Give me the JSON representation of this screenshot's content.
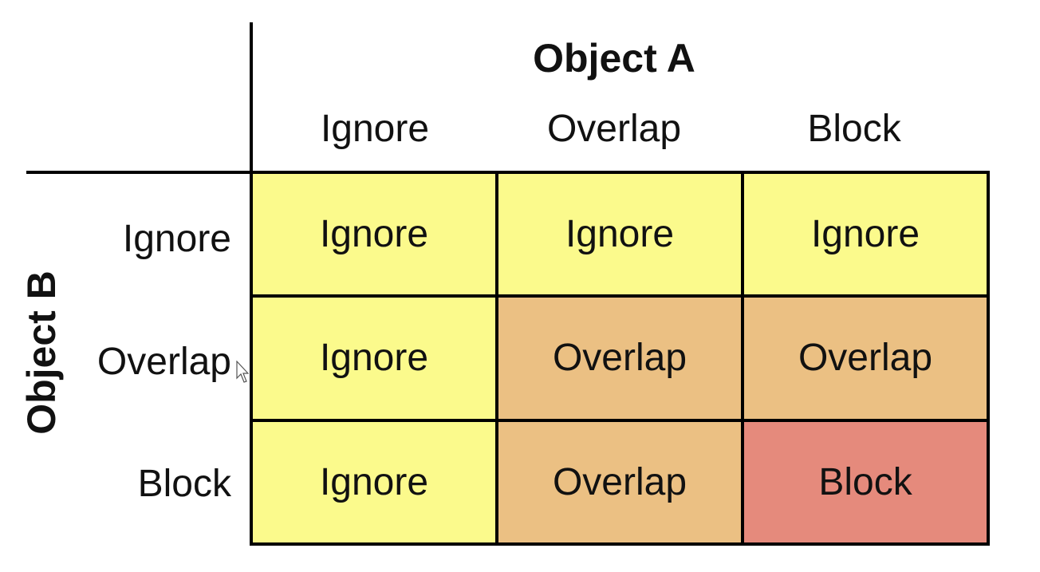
{
  "object_a": {
    "title": "Object A",
    "columns": [
      "Ignore",
      "Overlap",
      "Block"
    ]
  },
  "object_b": {
    "title": "Object B",
    "rows": [
      "Ignore",
      "Overlap",
      "Block"
    ]
  },
  "matrix": [
    [
      "Ignore",
      "Ignore",
      "Ignore"
    ],
    [
      "Ignore",
      "Overlap",
      "Overlap"
    ],
    [
      "Ignore",
      "Overlap",
      "Block"
    ]
  ],
  "colors": {
    "ignore": "#fbfa8c",
    "overlap": "#ebc083",
    "block": "#e58a7c"
  }
}
